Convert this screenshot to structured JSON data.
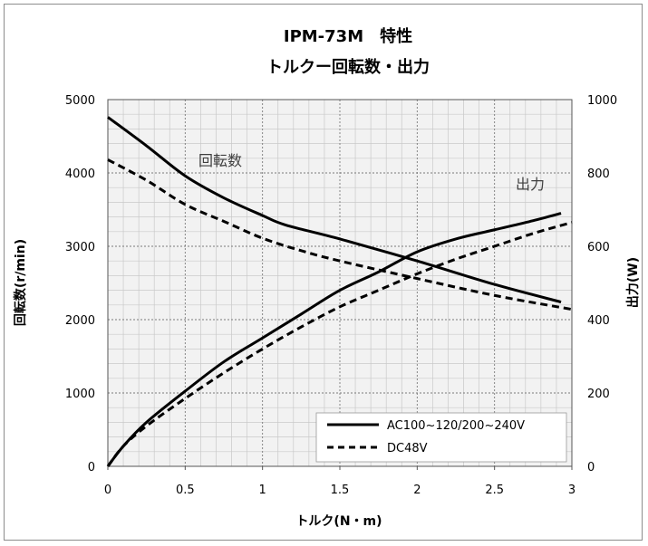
{
  "chart_data": {
    "type": "line",
    "title": "IPM-73M　特性",
    "subtitle": "トルクー回転数・出力",
    "xlabel": "トルク(N・m)",
    "ylabel_left": "回転数(r/min)",
    "ylabel_right": "出力(W)",
    "xlim": [
      0,
      3
    ],
    "ylim_left": [
      0,
      5000
    ],
    "ylim_right": [
      0,
      1000
    ],
    "x_ticks": [
      "0",
      "0.5",
      "1",
      "1.5",
      "2",
      "2.5",
      "3"
    ],
    "y_left_ticks": [
      "0",
      "1000",
      "2000",
      "3000",
      "4000",
      "5000"
    ],
    "y_right_ticks": [
      "0",
      "200",
      "400",
      "600",
      "800",
      "1000"
    ],
    "grid": true,
    "legend_position": "bottom-right",
    "annotations": [
      "回転数",
      "出力"
    ],
    "series": [
      {
        "name": "AC100~120/200~240V",
        "kind": "speed",
        "axis": "left",
        "style": "solid",
        "x": [
          0,
          0.25,
          0.5,
          0.75,
          1.0,
          1.15,
          1.5,
          2.0,
          2.5,
          2.93
        ],
        "y": [
          4760,
          4370,
          3960,
          3660,
          3420,
          3290,
          3100,
          2800,
          2480,
          2240
        ]
      },
      {
        "name": "DC48V",
        "kind": "speed",
        "axis": "left",
        "style": "dashed",
        "x": [
          0,
          0.25,
          0.5,
          0.75,
          1.0,
          1.25,
          1.5,
          2.0,
          2.5,
          3.0
        ],
        "y": [
          4180,
          3900,
          3570,
          3340,
          3110,
          2940,
          2800,
          2560,
          2330,
          2140
        ]
      },
      {
        "name": "AC100~120/200~240V",
        "kind": "output",
        "axis": "right",
        "style": "solid",
        "x": [
          0,
          0.1,
          0.25,
          0.5,
          0.75,
          1.0,
          1.25,
          1.5,
          1.75,
          2.0,
          2.25,
          2.5,
          2.75,
          2.93
        ],
        "y": [
          0,
          55,
          120,
          205,
          285,
          350,
          415,
          480,
          530,
          585,
          620,
          645,
          670,
          690
        ]
      },
      {
        "name": "DC48V",
        "kind": "output",
        "axis": "right",
        "style": "dashed",
        "x": [
          0,
          0.1,
          0.25,
          0.5,
          0.75,
          1.0,
          1.25,
          1.5,
          1.75,
          2.0,
          2.25,
          2.5,
          2.75,
          3.0
        ],
        "y": [
          0,
          55,
          110,
          185,
          255,
          320,
          380,
          435,
          480,
          525,
          565,
          600,
          635,
          665
        ]
      }
    ]
  }
}
